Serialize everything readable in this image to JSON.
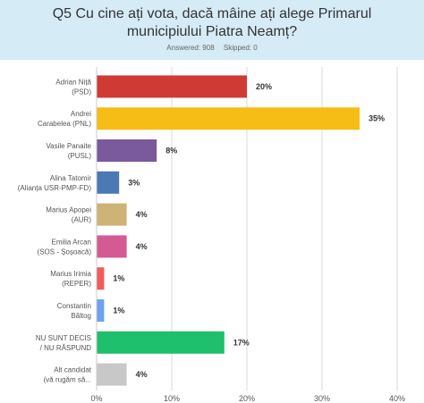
{
  "header": {
    "title": "Q5 Cu cine ați vota, dacă mâine ați alege Primarul municipiului Piatra Neamț?",
    "answered": "Answered: 908",
    "skipped": "Skipped: 0"
  },
  "chart_data": {
    "type": "bar",
    "orientation": "horizontal",
    "title": "Q5 Cu cine ați vota, dacă mâine ați alege Primarul municipiului Piatra Neamț?",
    "categories": [
      [
        "Adrian Niță",
        "(PSD)"
      ],
      [
        "Andrei",
        "Carabelea (PNL)"
      ],
      [
        "Vasile Panaite",
        "(PUSL)"
      ],
      [
        "Alina Tatomir",
        "(Alianța USR-PMP-FD)"
      ],
      [
        "Marius Apopei",
        "(AUR)"
      ],
      [
        "Emilia Arcan",
        "(SOS - Șoșoacă)"
      ],
      [
        "Marius Irimia",
        "(REPER)"
      ],
      [
        "Constantin",
        "Băltog"
      ],
      [
        "NU SUNT DECIS",
        "/ NU RĂSPUND"
      ],
      [
        "Alt candidat",
        "(vă rugăm să..."
      ]
    ],
    "values": [
      20,
      35,
      8,
      3,
      4,
      4,
      1,
      1,
      17,
      4
    ],
    "value_labels": [
      "20%",
      "35%",
      "8%",
      "3%",
      "4%",
      "4%",
      "1%",
      "1%",
      "17%",
      "4%"
    ],
    "colors": [
      "#cf3a35",
      "#f6bd16",
      "#7a5a9c",
      "#4a79b4",
      "#cdb476",
      "#d45a93",
      "#f05d5b",
      "#6ea1f0",
      "#1ebf6d",
      "#c8c8c8"
    ],
    "xlim": [
      0,
      40
    ],
    "xticks": [
      "0%",
      "10%",
      "20%",
      "30%",
      "40%"
    ],
    "grid": true
  }
}
